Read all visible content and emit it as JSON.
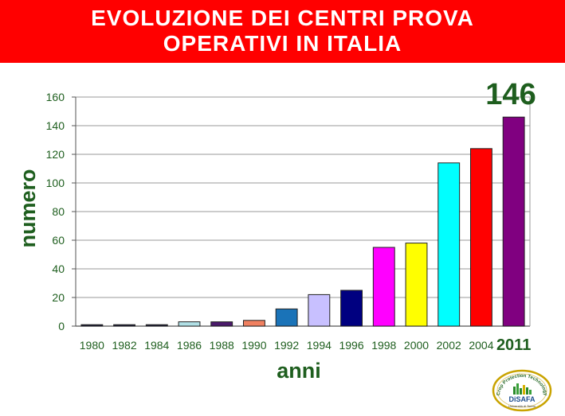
{
  "banner": {
    "line1": "EVOLUZIONE DEI CENTRI PROVA",
    "line2": "OPERATIVI IN ITALIA"
  },
  "chart_data": {
    "type": "bar",
    "categories": [
      "1980",
      "1982",
      "1984",
      "1986",
      "1988",
      "1990",
      "1992",
      "1994",
      "1996",
      "1998",
      "2000",
      "2002",
      "2004",
      "2011"
    ],
    "values": [
      1,
      1,
      1,
      3,
      3,
      4,
      12,
      22,
      25,
      55,
      58,
      114,
      124,
      146
    ],
    "bar_colors": [
      "#1a1a3a",
      "#1a1a3a",
      "#1a1a3a",
      "#b0e0e6",
      "#4b1a6b",
      "#f08060",
      "#1a73b8",
      "#c8c0ff",
      "#000080",
      "#ff00ff",
      "#ffff00",
      "#00ffff",
      "#ff0000",
      "#800080"
    ],
    "ylabel": "numero",
    "xlabel": "anni",
    "ylim": [
      0,
      160
    ],
    "yticks": [
      0,
      20,
      40,
      60,
      80,
      100,
      120,
      140,
      160
    ],
    "grid": true,
    "annotation": "146",
    "highlight_category": "2011"
  },
  "colors": {
    "banner_bg": "#ff0000",
    "axis_label": "#1e5e1e",
    "annotation": "#1e5e1e"
  },
  "logo": {
    "arc_text": "Crop Protection Technology",
    "name": "DiSAFA",
    "subtitle": "Università di Torino"
  }
}
